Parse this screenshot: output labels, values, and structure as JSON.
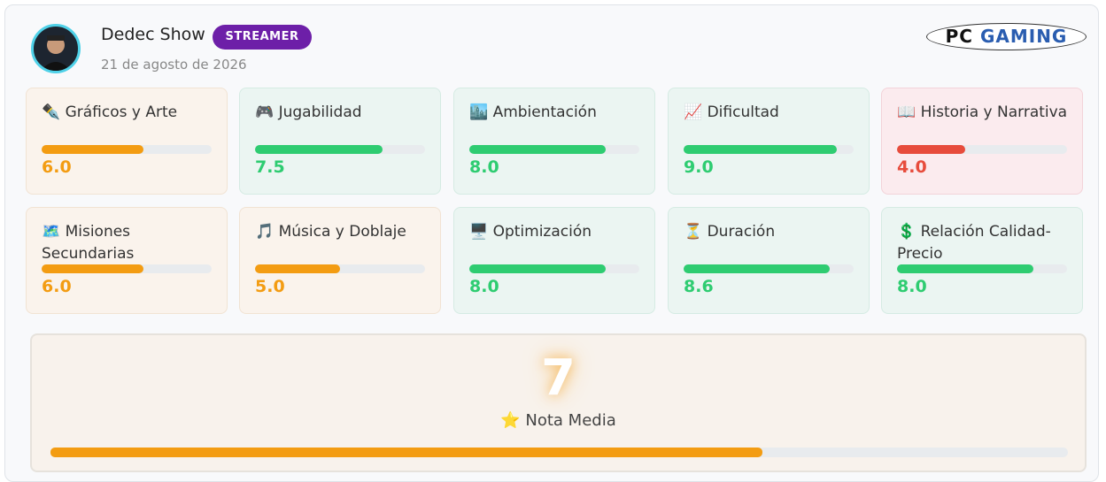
{
  "header": {
    "name": "Dedec Show",
    "badge": "STREAMER",
    "date": "21 de agosto de 2026",
    "logo": {
      "left": "PC",
      "right": "GAMING"
    }
  },
  "range": [
    0,
    10
  ],
  "ratings": [
    {
      "icon": "✒️",
      "label": "Gráficos y Arte",
      "score": {
        "value": 6,
        "label": "6.0"
      },
      "color": "#f39c12"
    },
    {
      "icon": "🎮",
      "label": "Jugabilidad",
      "score": {
        "value": 7.5,
        "label": "7.5"
      },
      "color": "#2ecc71"
    },
    {
      "icon": "🏙️",
      "label": "Ambientación",
      "score": {
        "value": 8,
        "label": "8.0"
      },
      "color": "#2ecc71"
    },
    {
      "icon": "📈",
      "label": "Dificultad",
      "score": {
        "value": 9,
        "label": "9.0"
      },
      "color": "#2ecc71"
    },
    {
      "icon": "📖",
      "label": "Historia y Narrativa",
      "score": {
        "value": 4,
        "label": "4.0"
      },
      "color": "#e74c3c"
    },
    {
      "icon": "🗺️",
      "label": "Misiones Secundarias",
      "score": {
        "value": 6,
        "label": "6.0"
      },
      "color": "#f39c12"
    },
    {
      "icon": "🎵",
      "label": "Música y Doblaje",
      "score": {
        "value": 5,
        "label": "5.0"
      },
      "color": "#f39c12"
    },
    {
      "icon": "🖥️",
      "label": "Optimización",
      "score": {
        "value": 8,
        "label": "8.0"
      },
      "color": "#2ecc71"
    },
    {
      "icon": "⏳",
      "label": "Duración",
      "score": {
        "value": 8.6,
        "label": "8.6"
      },
      "color": "#2ecc71"
    },
    {
      "icon": "💲",
      "label": "Relación Calidad-Precio",
      "score": {
        "value": 8,
        "label": "8.0"
      },
      "color": "#2ecc71"
    }
  ],
  "overall": {
    "score": 7,
    "icon": "⭐",
    "label": "Nota Media",
    "color": "#f39c12"
  }
}
